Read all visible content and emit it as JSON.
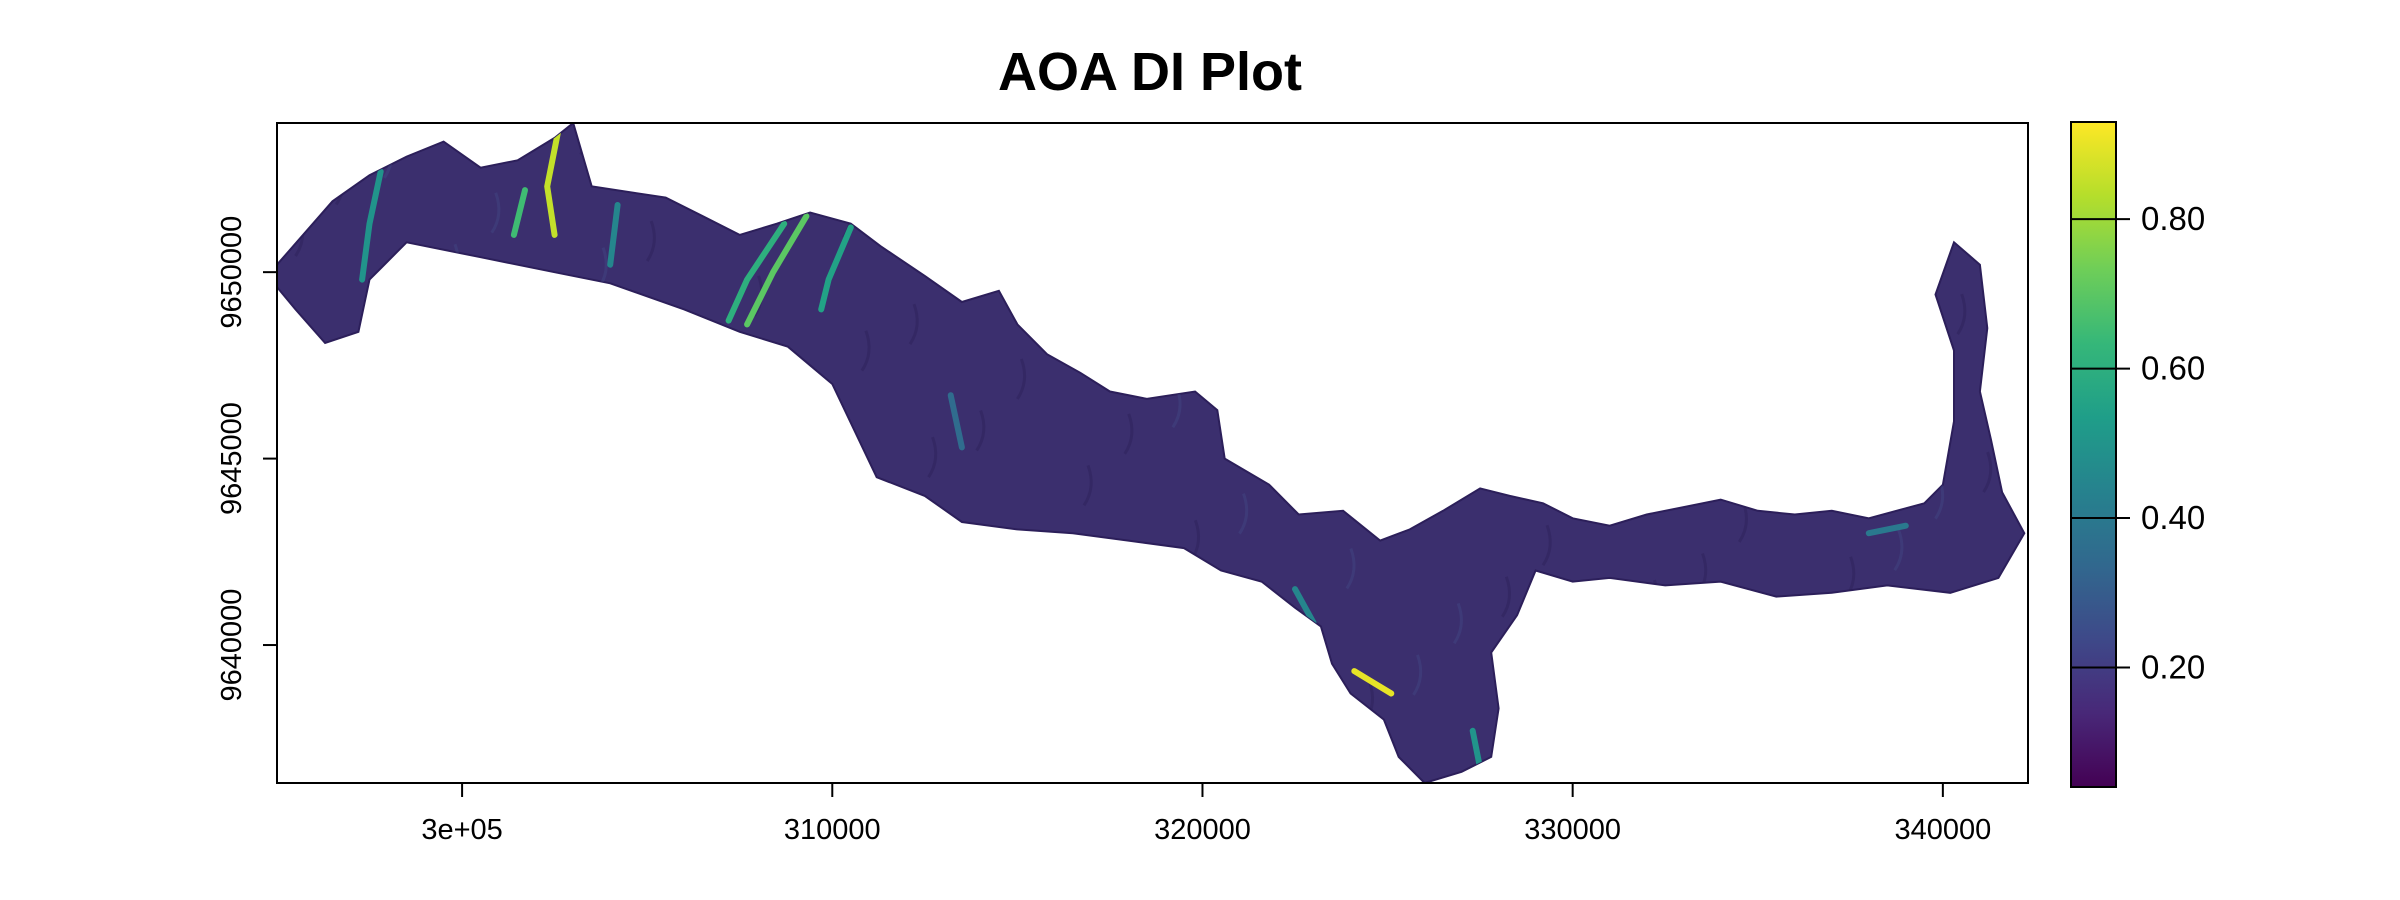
{
  "chart_data": {
    "type": "heatmap",
    "title": "AOA DI Plot",
    "xlabel": "",
    "ylabel": "",
    "xlim": [
      295000,
      342300
    ],
    "ylim": [
      9636300,
      9654000
    ],
    "x_ticks": [
      {
        "value": 300000,
        "label": "3e+05"
      },
      {
        "value": 310000,
        "label": "310000"
      },
      {
        "value": 320000,
        "label": "320000"
      },
      {
        "value": 330000,
        "label": "330000"
      },
      {
        "value": 340000,
        "label": "340000"
      }
    ],
    "y_ticks": [
      {
        "value": 9640000,
        "label": "9640000"
      },
      {
        "value": 9645000,
        "label": "9645000"
      },
      {
        "value": 9650000,
        "label": "9650000"
      }
    ],
    "colorbar": {
      "palette": "viridis",
      "range": [
        0.04,
        0.93
      ],
      "ticks": [
        {
          "value": 0.2,
          "label": "0.20"
        },
        {
          "value": 0.4,
          "label": "0.40"
        },
        {
          "value": 0.6,
          "label": "0.60"
        },
        {
          "value": 0.8,
          "label": "0.80"
        }
      ],
      "colors": [
        "#440154",
        "#482878",
        "#3e4989",
        "#31688e",
        "#26828e",
        "#1f9e89",
        "#35b779",
        "#6ece58",
        "#b5de2b",
        "#fde725"
      ]
    },
    "region": {
      "description_values": "DI mostly 0.05-0.25 across corridor, with streaks up to ~0.9",
      "base_color": "#3b2f6e",
      "outline": [
        [
          295000,
          9650200
        ],
        [
          296500,
          9651900
        ],
        [
          297500,
          9652600
        ],
        [
          298500,
          9653100
        ],
        [
          299500,
          9653500
        ],
        [
          300500,
          9652800
        ],
        [
          301500,
          9653000
        ],
        [
          302500,
          9653600
        ],
        [
          303000,
          9654000
        ],
        [
          303500,
          9652300
        ],
        [
          305500,
          9652000
        ],
        [
          306500,
          9651500
        ],
        [
          307500,
          9651000
        ],
        [
          308500,
          9651300
        ],
        [
          309400,
          9651600
        ],
        [
          310500,
          9651300
        ],
        [
          311300,
          9650700
        ],
        [
          312500,
          9649900
        ],
        [
          313500,
          9649200
        ],
        [
          314500,
          9649500
        ],
        [
          315000,
          9648600
        ],
        [
          315800,
          9647800
        ],
        [
          316700,
          9647300
        ],
        [
          317500,
          9646800
        ],
        [
          318500,
          9646600
        ],
        [
          319800,
          9646800
        ],
        [
          320400,
          9646300
        ],
        [
          320600,
          9645000
        ],
        [
          321800,
          9644300
        ],
        [
          322600,
          9643500
        ],
        [
          323800,
          9643600
        ],
        [
          324800,
          9642800
        ],
        [
          325600,
          9643100
        ],
        [
          326500,
          9643600
        ],
        [
          327500,
          9644200
        ],
        [
          328300,
          9644000
        ],
        [
          329200,
          9643800
        ],
        [
          330000,
          9643400
        ],
        [
          331000,
          9643200
        ],
        [
          332000,
          9643500
        ],
        [
          333000,
          9643700
        ],
        [
          334000,
          9643900
        ],
        [
          335000,
          9643600
        ],
        [
          336000,
          9643500
        ],
        [
          337000,
          9643600
        ],
        [
          338000,
          9643400
        ],
        [
          339500,
          9643800
        ],
        [
          340000,
          9644300
        ],
        [
          340300,
          9646000
        ],
        [
          340300,
          9647900
        ],
        [
          339800,
          9649400
        ],
        [
          340300,
          9650800
        ],
        [
          341000,
          9650200
        ],
        [
          341200,
          9648500
        ],
        [
          341000,
          9646800
        ],
        [
          341300,
          9645500
        ],
        [
          341600,
          9644100
        ],
        [
          342200,
          9643000
        ],
        [
          341500,
          9641800
        ],
        [
          340200,
          9641400
        ],
        [
          338500,
          9641600
        ],
        [
          337000,
          9641400
        ],
        [
          335500,
          9641300
        ],
        [
          334000,
          9641700
        ],
        [
          332500,
          9641600
        ],
        [
          331000,
          9641800
        ],
        [
          330000,
          9641700
        ],
        [
          329000,
          9642000
        ],
        [
          328500,
          9640800
        ],
        [
          327800,
          9639800
        ],
        [
          328000,
          9638300
        ],
        [
          327800,
          9637000
        ],
        [
          327000,
          9636600
        ],
        [
          326000,
          9636300
        ],
        [
          325300,
          9637000
        ],
        [
          324900,
          9638000
        ],
        [
          324000,
          9638700
        ],
        [
          323500,
          9639500
        ],
        [
          323200,
          9640500
        ],
        [
          322500,
          9641000
        ],
        [
          321600,
          9641700
        ],
        [
          320500,
          9642000
        ],
        [
          319500,
          9642600
        ],
        [
          318000,
          9642800
        ],
        [
          316500,
          9643000
        ],
        [
          315000,
          9643100
        ],
        [
          313500,
          9643300
        ],
        [
          312500,
          9644000
        ],
        [
          311200,
          9644500
        ],
        [
          310000,
          9647000
        ],
        [
          308800,
          9648000
        ],
        [
          307500,
          9648400
        ],
        [
          306000,
          9649000
        ],
        [
          304000,
          9649700
        ],
        [
          302500,
          9650000
        ],
        [
          300500,
          9650400
        ],
        [
          298500,
          9650800
        ],
        [
          297500,
          9649800
        ],
        [
          297200,
          9648400
        ],
        [
          296300,
          9648100
        ],
        [
          295500,
          9649000
        ],
        [
          295000,
          9649600
        ]
      ]
    },
    "highlights": [
      {
        "di": 0.85,
        "points": [
          [
            302600,
            9653800
          ],
          [
            302300,
            9652300
          ],
          [
            302500,
            9651000
          ]
        ]
      },
      {
        "di": 0.65,
        "points": [
          [
            301700,
            9652200
          ],
          [
            301400,
            9651000
          ]
        ]
      },
      {
        "di": 0.7,
        "points": [
          [
            309300,
            9651500
          ],
          [
            308400,
            9650000
          ],
          [
            307700,
            9648600
          ]
        ]
      },
      {
        "di": 0.6,
        "points": [
          [
            308700,
            9651300
          ],
          [
            307700,
            9649800
          ],
          [
            307200,
            9648700
          ]
        ]
      },
      {
        "di": 0.55,
        "points": [
          [
            310500,
            9651200
          ],
          [
            309900,
            9649800
          ],
          [
            309700,
            9649000
          ]
        ]
      },
      {
        "di": 0.5,
        "points": [
          [
            297800,
            9652700
          ],
          [
            297500,
            9651300
          ],
          [
            297300,
            9649800
          ]
        ]
      },
      {
        "di": 0.45,
        "points": [
          [
            304200,
            9651800
          ],
          [
            304000,
            9650200
          ]
        ]
      },
      {
        "di": 0.9,
        "points": [
          [
            324100,
            9639300
          ],
          [
            324600,
            9639000
          ],
          [
            325100,
            9638700
          ]
        ]
      },
      {
        "di": 0.5,
        "points": [
          [
            327300,
            9637700
          ],
          [
            327500,
            9636700
          ]
        ]
      },
      {
        "di": 0.45,
        "points": [
          [
            323000,
            9640600
          ],
          [
            322500,
            9641500
          ]
        ]
      },
      {
        "di": 0.4,
        "points": [
          [
            338000,
            9643000
          ],
          [
            339000,
            9643200
          ]
        ]
      },
      {
        "di": 0.35,
        "points": [
          [
            313200,
            9646700
          ],
          [
            313500,
            9645300
          ]
        ]
      }
    ]
  }
}
